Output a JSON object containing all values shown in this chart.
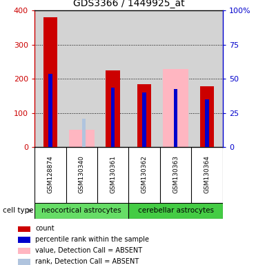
{
  "title": "GDS3366 / 1449925_at",
  "samples": [
    "GSM128874",
    "GSM130340",
    "GSM130361",
    "GSM130362",
    "GSM130363",
    "GSM130364"
  ],
  "count_values": [
    380,
    0,
    225,
    185,
    0,
    178
  ],
  "percentile_values": [
    215,
    0,
    175,
    160,
    170,
    140
  ],
  "absent_value_values": [
    0,
    50,
    0,
    0,
    228,
    0
  ],
  "absent_rank_values": [
    0,
    83,
    0,
    0,
    0,
    0
  ],
  "groups": [
    {
      "label": "neocortical astrocytes",
      "start": 0,
      "end": 3,
      "color": "#66dd66"
    },
    {
      "label": "cerebellar astrocytes",
      "start": 3,
      "end": 6,
      "color": "#44cc44"
    }
  ],
  "cell_type_label": "cell type",
  "left_ylim": [
    0,
    400
  ],
  "right_ylim": [
    0,
    100
  ],
  "left_yticks": [
    0,
    100,
    200,
    300,
    400
  ],
  "right_yticks": [
    0,
    25,
    50,
    75,
    100
  ],
  "right_yticklabels": [
    "0",
    "25",
    "50",
    "75",
    "100%"
  ],
  "left_ycolor": "#cc0000",
  "right_ycolor": "#0000cc",
  "count_color": "#cc0000",
  "percentile_color": "#0000cc",
  "absent_value_color": "#ffb6c1",
  "absent_rank_color": "#b0c4de",
  "plot_bg": "#d3d3d3",
  "sample_box_bg": "#c0c0c0",
  "fig_bg": "#ffffff",
  "legend_items": [
    {
      "color": "#cc0000",
      "label": "count"
    },
    {
      "color": "#0000cc",
      "label": "percentile rank within the sample"
    },
    {
      "color": "#ffb6c1",
      "label": "value, Detection Call = ABSENT"
    },
    {
      "color": "#b0c4de",
      "label": "rank, Detection Call = ABSENT"
    }
  ]
}
